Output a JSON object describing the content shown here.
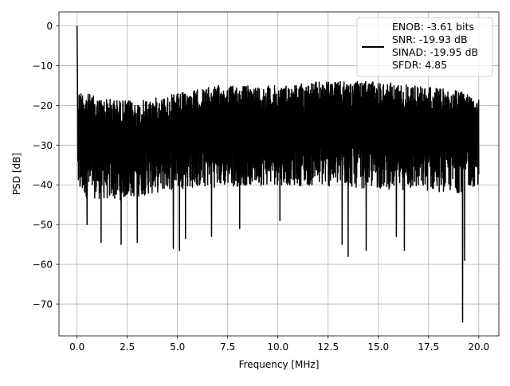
{
  "chart_data": {
    "type": "line",
    "title": "",
    "xlabel": "Frequency [MHz]",
    "ylabel": "PSD [dB]",
    "xlim": [
      -0.9,
      21.0
    ],
    "ylim": [
      -78,
      3.5
    ],
    "xticks": [
      0.0,
      2.5,
      5.0,
      7.5,
      10.0,
      12.5,
      15.0,
      17.5,
      20.0
    ],
    "xtick_labels": [
      "0.0",
      "2.5",
      "5.0",
      "7.5",
      "10.0",
      "12.5",
      "15.0",
      "17.5",
      "20.0"
    ],
    "yticks": [
      0,
      -10,
      -20,
      -30,
      -40,
      -50,
      -60,
      -70
    ],
    "ytick_labels": [
      "0",
      "−10",
      "−20",
      "−30",
      "−40",
      "−50",
      "−60",
      "−70"
    ],
    "grid": true,
    "legend_position": "top-right",
    "series": [
      {
        "color": "#000000",
        "label_lines": [
          "ENOB: -3.61 bits",
          "SNR: -19.93 dB",
          "SINAD: -19.95 dB",
          "SFDR: 4.85"
        ],
        "peak": {
          "x": 0.0,
          "y": 0.0
        },
        "floor_upper_envelope": [
          [
            0.1,
            -16
          ],
          [
            1,
            -18
          ],
          [
            3,
            -19
          ],
          [
            5,
            -17
          ],
          [
            7,
            -15
          ],
          [
            10,
            -15
          ],
          [
            12,
            -14
          ],
          [
            15,
            -14
          ],
          [
            17,
            -15
          ],
          [
            20,
            -17
          ]
        ],
        "floor_lower_envelope": [
          [
            0.1,
            -43
          ],
          [
            2,
            -44
          ],
          [
            5,
            -41
          ],
          [
            10,
            -40
          ],
          [
            15,
            -41
          ],
          [
            19,
            -42
          ],
          [
            20,
            -40
          ]
        ],
        "notable_dips": [
          {
            "x": 0.5,
            "y": -50
          },
          {
            "x": 1.2,
            "y": -54.5
          },
          {
            "x": 2.2,
            "y": -55
          },
          {
            "x": 3.0,
            "y": -54.5
          },
          {
            "x": 4.8,
            "y": -56
          },
          {
            "x": 5.1,
            "y": -56.5
          },
          {
            "x": 5.4,
            "y": -53.5
          },
          {
            "x": 6.7,
            "y": -53
          },
          {
            "x": 8.1,
            "y": -51
          },
          {
            "x": 10.1,
            "y": -49
          },
          {
            "x": 13.2,
            "y": -55
          },
          {
            "x": 13.5,
            "y": -58
          },
          {
            "x": 14.4,
            "y": -56.5
          },
          {
            "x": 15.9,
            "y": -53
          },
          {
            "x": 16.3,
            "y": -56.5
          },
          {
            "x": 19.2,
            "y": -74.5
          },
          {
            "x": 19.3,
            "y": -59
          }
        ]
      }
    ]
  }
}
